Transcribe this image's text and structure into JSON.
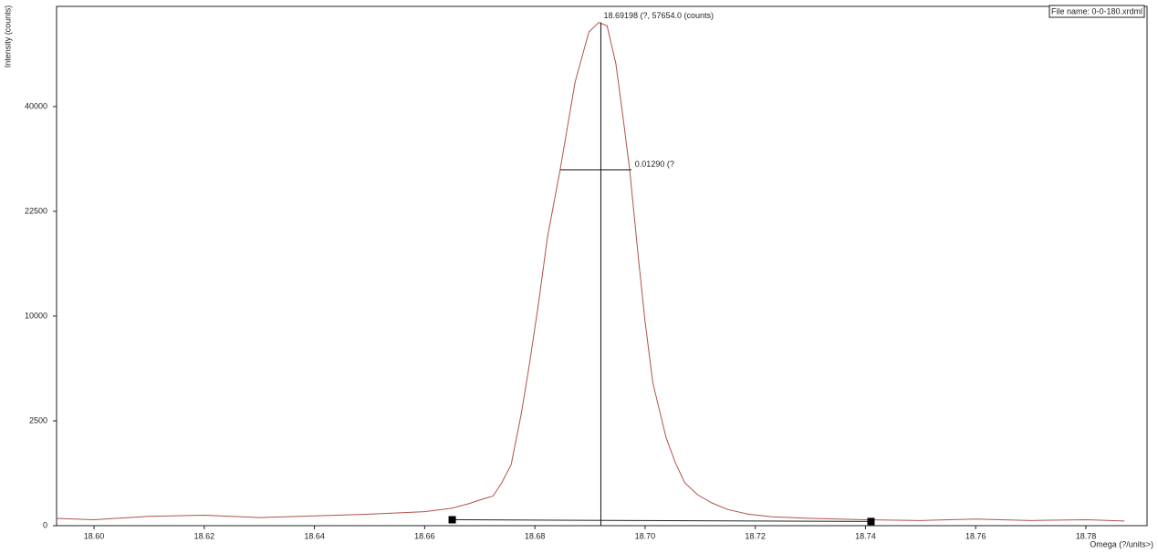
{
  "chart_data": {
    "type": "line",
    "y_label": "Intensity (counts)",
    "x_label": "Omega (?/units>)",
    "file_name": "File name: 0-0-180.xrdml",
    "yscale": "sqrt",
    "xlim": [
      18.5932,
      18.7911
    ],
    "ylim": [
      0,
      61400
    ],
    "xticks": [
      {
        "value": 18.6,
        "label": "18.60"
      },
      18.62,
      18.64,
      18.66,
      18.68,
      {
        "value": 18.7,
        "label": "18.70"
      },
      18.72,
      18.74,
      18.76,
      18.78
    ],
    "yticks": [
      0,
      2500,
      10000,
      22500,
      40000
    ],
    "series": [
      {
        "color": "#b0524a",
        "x": [
          18.5932,
          18.6,
          18.61,
          18.62,
          18.63,
          18.64,
          18.65,
          18.66,
          18.665,
          18.668,
          18.6705,
          18.6724,
          18.674,
          18.6757,
          18.6775,
          18.679,
          18.6806,
          18.6823,
          18.6846,
          18.6873,
          18.6898,
          18.6916,
          18.6931,
          18.6947,
          18.696,
          18.6972,
          18.6989,
          18.7,
          18.7014,
          18.7038,
          18.7055,
          18.7072,
          18.7095,
          18.7121,
          18.715,
          18.7187,
          18.723,
          18.73,
          18.74,
          18.75,
          18.76,
          18.77,
          18.78,
          18.787
        ],
        "values": [
          12,
          8,
          20,
          25,
          15,
          22,
          30,
          45,
          70,
          110,
          160,
          200,
          420,
          850,
          2800,
          5900,
          11000,
          19000,
          28900,
          44800,
          55500,
          57654,
          56900,
          48600,
          38000,
          28900,
          15600,
          9500,
          4660,
          1780,
          900,
          420,
          220,
          118,
          60,
          30,
          18,
          12,
          8,
          6,
          10,
          6,
          8,
          5
        ]
      }
    ],
    "peak": {
      "x": 18.69198,
      "value": 57654,
      "label": "18.69198 (?, 57654.0 (counts)"
    },
    "fwhm": {
      "x": [
        18.6846,
        18.6975
      ],
      "value": 28827,
      "label": "0.01290 (?"
    },
    "background": {
      "x": [
        18.665,
        18.741
      ],
      "values": [
        8,
        4
      ]
    }
  }
}
